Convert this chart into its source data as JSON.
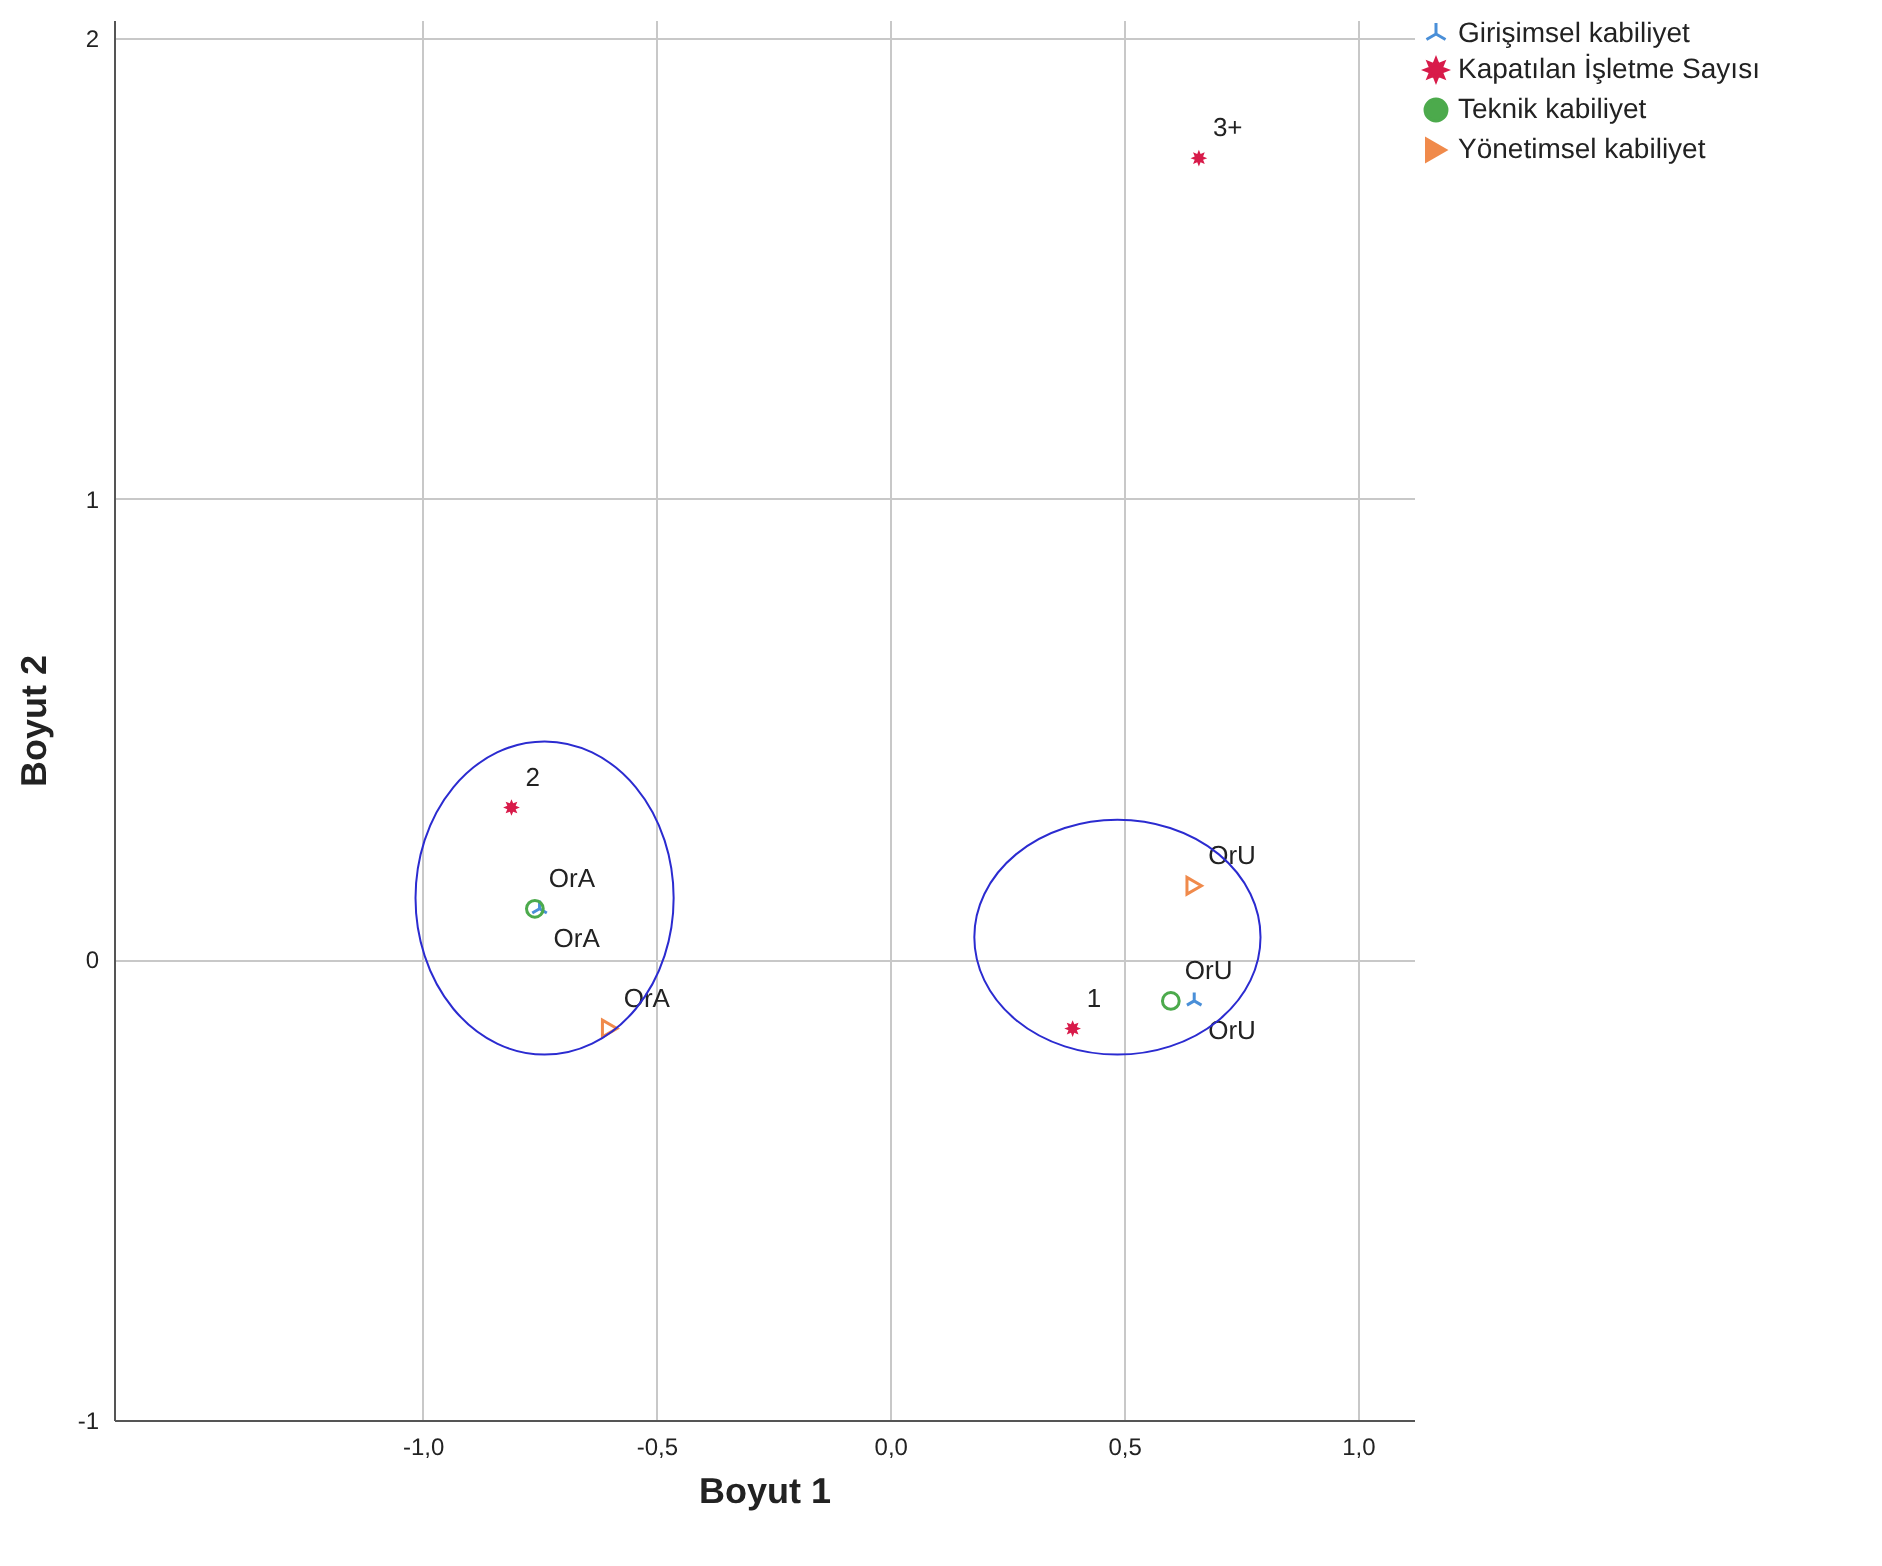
{
  "chart_data": {
    "type": "scatter",
    "xlabel": "Boyut 1",
    "ylabel": "Boyut 2",
    "xlim": [
      -1.66,
      1.12
    ],
    "ylim": [
      -1,
      2.04
    ],
    "xticks": [
      {
        "value": -1,
        "label": "-1,0"
      },
      {
        "value": -0.5,
        "label": "-0,5"
      },
      {
        "value": 0,
        "label": "0,0"
      },
      {
        "value": 0.5,
        "label": "0,5"
      },
      {
        "value": 1,
        "label": "1,0"
      }
    ],
    "yticks": [
      -1,
      0,
      1,
      2
    ],
    "grid": true,
    "legend": "top right",
    "series": [
      {
        "name": "Girişimsel kabiliyet",
        "color": "#4a8fd8",
        "marker": "cross",
        "x": [
          -0.75,
          0.65
        ],
        "values": [
          0.11,
          -0.09
        ]
      },
      {
        "name": "Kapatılan İşletme Sayısı",
        "color": "#d81b4a",
        "marker": "star",
        "x": [
          0.66,
          -0.81,
          0.39
        ],
        "values": [
          1.74,
          0.33,
          -0.15
        ]
      },
      {
        "name": "Teknik kabiliyet",
        "color": "#4caa4c",
        "marker": "circle",
        "x": [
          -0.76,
          0.6
        ],
        "values": [
          0.11,
          -0.09
        ]
      },
      {
        "name": "Yönetimsel kabiliyet",
        "color": "#f08a4b",
        "marker": "triangle",
        "x": [
          -0.6,
          0.65
        ],
        "values": [
          -0.15,
          0.16
        ]
      }
    ],
    "annotations": [
      {
        "text": "3+",
        "x": 0.66,
        "y": 1.74
      },
      {
        "text": "2",
        "x": -0.81,
        "y": 0.33
      },
      {
        "text": "1",
        "x": 0.39,
        "y": -0.15
      },
      {
        "text": "OrA",
        "x": -0.76,
        "y": 0.11
      },
      {
        "text": "OrU",
        "x": 0.6,
        "y": -0.09
      },
      {
        "text": "OrA",
        "x": -0.75,
        "y": 0.11
      },
      {
        "text": "OrU",
        "x": 0.65,
        "y": -0.09
      },
      {
        "text": "OrA",
        "x": -0.6,
        "y": -0.15
      },
      {
        "text": "OrU",
        "x": 0.65,
        "y": 0.16
      }
    ]
  }
}
